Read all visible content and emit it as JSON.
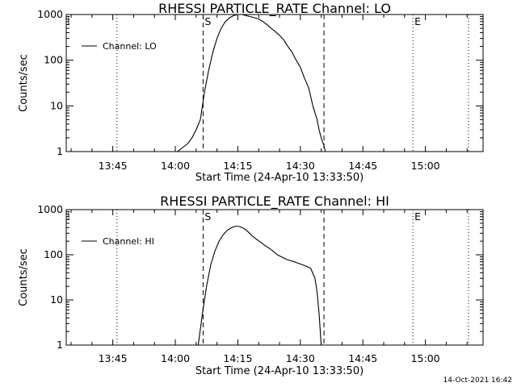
{
  "footer": {
    "date_stamp": "14-Oct-2021 16:42"
  },
  "chart_data": [
    {
      "type": "line",
      "title": "RHESSI PARTICLE_RATE Channel: LO",
      "xlabel": "Start Time (24-Apr-10 13:33:50)",
      "ylabel": "Counts/sec",
      "x_unit": "minutes after 13:33:50",
      "xlim": [
        0,
        100
      ],
      "ylim": [
        1,
        1000
      ],
      "yscale": "log",
      "x_ticks": [
        "13:45",
        "14:00",
        "14:15",
        "14:30",
        "14:45",
        "15:00"
      ],
      "y_ticks": [
        "1",
        "10",
        "100",
        "1000"
      ],
      "legend": {
        "entries": [
          "Channel: LO"
        ],
        "position": "top-left"
      },
      "markers": [
        {
          "label": "S",
          "time": "14:06:40",
          "style": "dashed"
        },
        {
          "label": "",
          "time": "14:35:40",
          "style": "dashed"
        },
        {
          "label": "E",
          "time": "14:57:00",
          "style": "dotted"
        },
        {
          "label": "",
          "time": "13:46:00",
          "style": "dotted"
        },
        {
          "label": "",
          "time": "15:10:20",
          "style": "dotted"
        }
      ],
      "series": [
        {
          "name": "Channel: LO",
          "x": [
            "14:00:30",
            "14:03:00",
            "14:04:00",
            "14:05:00",
            "14:06:00",
            "14:07:00",
            "14:08:00",
            "14:09:00",
            "14:10:00",
            "14:11:00",
            "14:12:00",
            "14:13:00",
            "14:14:00",
            "14:15:00",
            "14:16:00",
            "14:17:00",
            "14:18:00",
            "14:19:00",
            "14:20:00",
            "14:21:00",
            "14:22:00",
            "14:23:00",
            "14:24:00",
            "14:25:00",
            "14:26:00",
            "14:27:00",
            "14:28:00",
            "14:29:00",
            "14:30:00",
            "14:31:00",
            "14:32:00",
            "14:33:00",
            "14:34:00",
            "14:34:30",
            "14:35:00",
            "14:35:30",
            "14:36:00",
            "14:37:00"
          ],
          "y": [
            1,
            1.5,
            2,
            3,
            5,
            20,
            60,
            150,
            300,
            500,
            700,
            850,
            950,
            1000,
            1000,
            950,
            900,
            850,
            800,
            700,
            600,
            500,
            420,
            350,
            280,
            200,
            150,
            100,
            70,
            40,
            25,
            10,
            5,
            3,
            2,
            1.5,
            1,
            1
          ]
        }
      ]
    },
    {
      "type": "line",
      "title": "RHESSI PARTICLE_RATE Channel: HI",
      "xlabel": "Start Time (24-Apr-10 13:33:50)",
      "ylabel": "Counts/sec",
      "x_unit": "minutes after 13:33:50",
      "xlim": [
        0,
        100
      ],
      "ylim": [
        1,
        1000
      ],
      "yscale": "log",
      "x_ticks": [
        "13:45",
        "14:00",
        "14:15",
        "14:30",
        "14:45",
        "15:00"
      ],
      "y_ticks": [
        "1",
        "10",
        "100",
        "1000"
      ],
      "legend": {
        "entries": [
          "Channel: HI"
        ],
        "position": "top-left"
      },
      "markers": [
        {
          "label": "S",
          "time": "14:06:40",
          "style": "dashed"
        },
        {
          "label": "",
          "time": "14:35:40",
          "style": "dashed"
        },
        {
          "label": "E",
          "time": "14:57:00",
          "style": "dotted"
        },
        {
          "label": "",
          "time": "13:46:00",
          "style": "dotted"
        },
        {
          "label": "",
          "time": "15:10:20",
          "style": "dotted"
        }
      ],
      "series": [
        {
          "name": "Channel: HI",
          "x": [
            "14:05:30",
            "14:06:30",
            "14:07:30",
            "14:08:30",
            "14:09:30",
            "14:10:30",
            "14:11:30",
            "14:12:30",
            "14:13:30",
            "14:14:30",
            "14:15:30",
            "14:16:30",
            "14:17:30",
            "14:18:30",
            "14:19:30",
            "14:20:30",
            "14:21:30",
            "14:22:30",
            "14:23:30",
            "14:24:30",
            "14:25:30",
            "14:26:30",
            "14:27:30",
            "14:28:30",
            "14:29:30",
            "14:30:30",
            "14:31:30",
            "14:32:30",
            "14:33:30",
            "14:34:00",
            "14:34:30",
            "14:35:00"
          ],
          "y": [
            1,
            5,
            20,
            60,
            120,
            200,
            280,
            350,
            400,
            430,
            420,
            380,
            320,
            260,
            220,
            190,
            160,
            140,
            120,
            100,
            90,
            80,
            75,
            70,
            65,
            60,
            55,
            50,
            30,
            15,
            5,
            1
          ]
        }
      ]
    }
  ]
}
